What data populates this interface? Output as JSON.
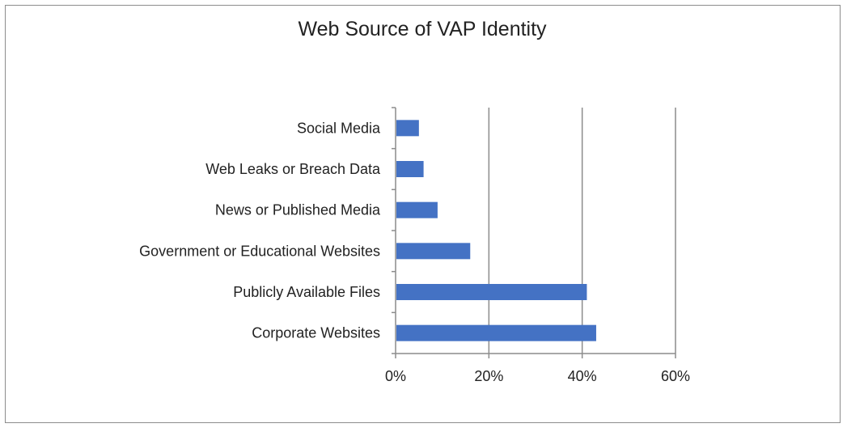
{
  "chart_data": {
    "type": "bar",
    "orientation": "horizontal",
    "title": "Web Source of VAP Identity",
    "categories": [
      "Corporate Websites",
      "Publicly Available Files",
      "Government or Educational Websites",
      "News or Published Media",
      "Web Leaks or Breach Data",
      "Social Media"
    ],
    "values": [
      43,
      41,
      16,
      9,
      6,
      5
    ],
    "xlabel": "",
    "ylabel": "",
    "xlim": [
      0,
      60
    ],
    "xticks": [
      0,
      20,
      40,
      60
    ],
    "xtick_labels": [
      "0%",
      "20%",
      "40%",
      "60%"
    ],
    "grid": true,
    "legend": "none",
    "colors": {
      "bar": "#4472C4",
      "grid": "#8c8c8c"
    }
  }
}
